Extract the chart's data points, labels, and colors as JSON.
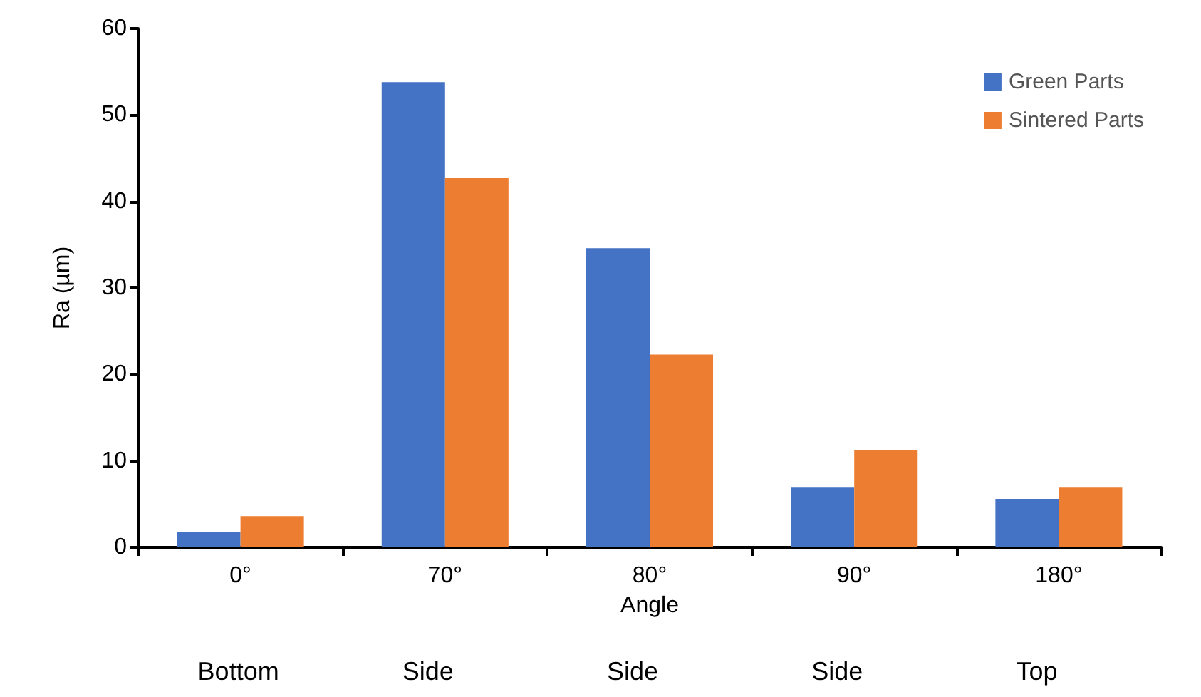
{
  "chart_data": {
    "type": "bar",
    "xlabel": "Angle",
    "ylabel": "Ra (µm)",
    "categories": [
      "0°",
      "70°",
      "80°",
      "90°",
      "180°"
    ],
    "series": [
      {
        "name": "Green Parts",
        "color": "#4472c4",
        "values": [
          1.8,
          53.8,
          34.6,
          6.9,
          5.6
        ]
      },
      {
        "name": "Sintered Parts",
        "color": "#ed7d31",
        "values": [
          3.6,
          42.7,
          22.3,
          11.3,
          6.9
        ]
      }
    ],
    "ylim": [
      0,
      60
    ],
    "yticks": [
      0,
      10,
      20,
      30,
      40,
      50,
      60
    ],
    "grid": false,
    "legend": "top right",
    "annotations": [
      "Bottom",
      "Side",
      "Side",
      "Side",
      "Top"
    ]
  }
}
